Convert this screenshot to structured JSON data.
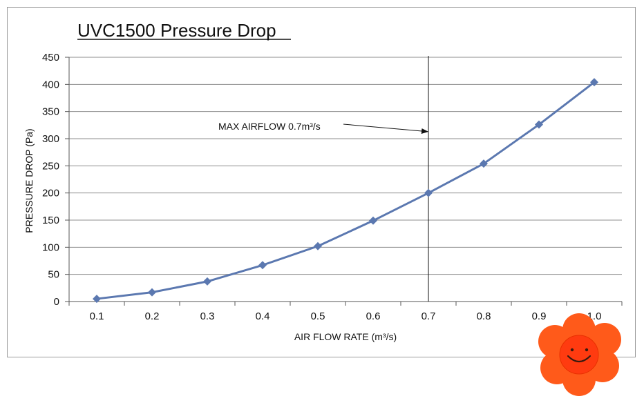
{
  "chart_data": {
    "type": "line",
    "title": "UVC1500 Pressure Drop",
    "xlabel": "AIR FLOW RATE (m³/s)",
    "ylabel": "PRESSURE DROP (Pa)",
    "x": [
      0.1,
      0.2,
      0.3,
      0.4,
      0.5,
      0.6,
      0.7,
      0.8,
      0.9,
      1.0
    ],
    "x_tick_labels": [
      "0.1",
      "0.2",
      "0.3",
      "0.4",
      "0.5",
      "0.6",
      "0.7",
      "0.8",
      "0.9",
      "1.0"
    ],
    "ylim": [
      0,
      450
    ],
    "y_ticks": [
      0,
      50,
      100,
      150,
      200,
      250,
      300,
      350,
      400,
      450
    ],
    "grid": true,
    "series": [
      {
        "values": [
          5,
          17,
          37,
          67,
          102,
          149,
          200,
          254,
          326,
          404
        ],
        "color": "#5b78b0"
      }
    ],
    "reference_line": {
      "x": 0.7,
      "color": "#111111"
    },
    "annotation": {
      "text": "MAX AIRFLOW 0.7m³/s",
      "target_x": 0.7,
      "target_y": 313
    }
  },
  "overlay": {
    "icon": "smiling-flower-icon",
    "petal_color": "#ff5a1a",
    "center_color": "#ff3b10"
  }
}
